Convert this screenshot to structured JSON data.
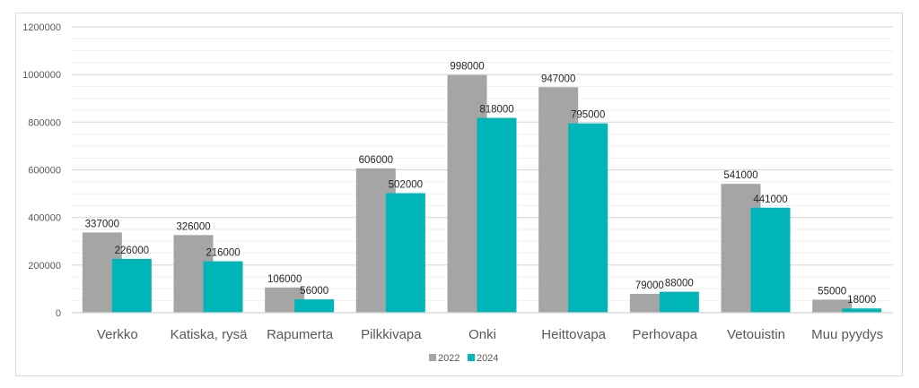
{
  "chart_data": {
    "type": "bar",
    "categories": [
      "Verkko",
      "Katiska, rysä",
      "Rapumerta",
      "Pilkkivapa",
      "Onki",
      "Heittovapa",
      "Perhovapa",
      "Vetouistin",
      "Muu pyydys"
    ],
    "series": [
      {
        "name": "2022",
        "color": "#a5a5a5",
        "values": [
          337000,
          326000,
          106000,
          606000,
          998000,
          947000,
          79000,
          541000,
          55000
        ]
      },
      {
        "name": "2024",
        "color": "#00b5b8",
        "values": [
          226000,
          216000,
          56000,
          502000,
          818000,
          795000,
          88000,
          441000,
          18000
        ]
      }
    ],
    "yticks": [
      "0",
      "200000",
      "400000",
      "600000",
      "800000",
      "1000000",
      "1200000"
    ],
    "ylim": [
      0,
      1200000
    ],
    "grid": true,
    "legend": "bottom",
    "data_labels": true
  }
}
